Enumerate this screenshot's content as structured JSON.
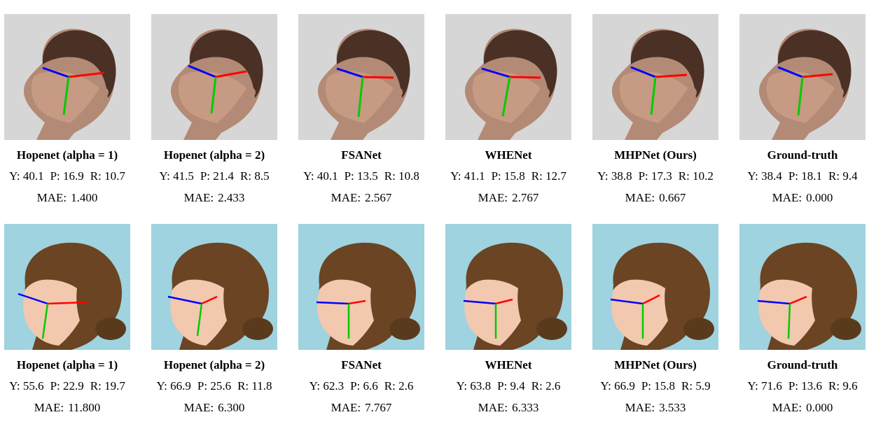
{
  "rows": [
    {
      "scene": "studio",
      "colors": {
        "background": "#d6d6d6",
        "skin": "#c79a83",
        "hair": "#4a3025",
        "yaw_axis": "#0000ff",
        "pitch_axis": "#00cc00",
        "roll_axis": "#ff0000"
      },
      "results": [
        {
          "method": "Hopenet (alpha = 1)",
          "y": "Y: 40.1",
          "p": "P: 16.9",
          "r": "R: 10.7",
          "mae_label": "MAE:",
          "mae": "1.400"
        },
        {
          "method": "Hopenet (alpha = 2)",
          "y": "Y: 41.5",
          "p": "P: 21.4",
          "r": "R: 8.5",
          "mae_label": "MAE:",
          "mae": "2.433"
        },
        {
          "method": "FSANet",
          "y": "Y: 40.1",
          "p": "P: 13.5",
          "r": "R: 10.8",
          "mae_label": "MAE:",
          "mae": "2.567"
        },
        {
          "method": "WHENet",
          "y": "Y: 41.1",
          "p": "P: 15.8",
          "r": "R: 12.7",
          "mae_label": "MAE:",
          "mae": "2.767"
        },
        {
          "method": "MHPNet (Ours)",
          "y": "Y: 38.8",
          "p": "P: 17.3",
          "r": "R: 10.2",
          "mae_label": "MAE:",
          "mae": "0.667"
        },
        {
          "method": "Ground-truth",
          "y": "Y: 38.4",
          "p": "P: 18.1",
          "r": "R: 9.4",
          "mae_label": "MAE:",
          "mae": "0.000"
        }
      ]
    },
    {
      "scene": "blue-backdrop",
      "colors": {
        "background": "#9fd3df",
        "skin": "#f2c8ae",
        "hair": "#6b4423",
        "yaw_axis": "#0000ff",
        "pitch_axis": "#00cc00",
        "roll_axis": "#ff0000"
      },
      "results": [
        {
          "method": "Hopenet (alpha = 1)",
          "y": "Y: 55.6",
          "p": "P: 22.9",
          "r": "R: 19.7",
          "mae_label": "MAE:",
          "mae": "11.800"
        },
        {
          "method": "Hopenet (alpha = 2)",
          "y": "Y: 66.9",
          "p": "P: 25.6",
          "r": "R: 11.8",
          "mae_label": "MAE:",
          "mae": "6.300"
        },
        {
          "method": "FSANet",
          "y": "Y: 62.3",
          "p": "P: 6.6",
          "r": "R: 2.6",
          "mae_label": "MAE:",
          "mae": "7.767"
        },
        {
          "method": "WHENet",
          "y": "Y: 63.8",
          "p": "P: 9.4",
          "r": "R: 2.6",
          "mae_label": "MAE:",
          "mae": "6.333"
        },
        {
          "method": "MHPNet (Ours)",
          "y": "Y: 66.9",
          "p": "P: 15.8",
          "r": "R: 5.9",
          "mae_label": "MAE:",
          "mae": "3.533"
        },
        {
          "method": "Ground-truth",
          "y": "Y: 71.6",
          "p": "P: 13.6",
          "r": "R: 9.6",
          "mae_label": "MAE:",
          "mae": "0.000"
        }
      ]
    }
  ]
}
